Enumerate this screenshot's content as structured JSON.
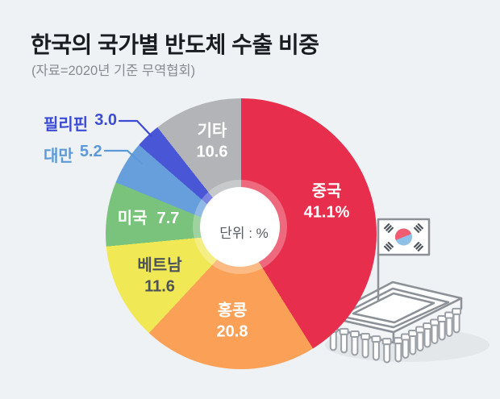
{
  "header": {
    "title": "한국의 국가별 반도체 수출 비중",
    "subtitle": "(자료=2020년 기준 무역협회)"
  },
  "chart_data": {
    "type": "pie",
    "variant": "donut",
    "title": "한국의 국가별 반도체 수출 비중",
    "source_note": "(자료=2020년 기준 무역협회)",
    "unit_label": "단위 : %",
    "start_angle_deg": 0,
    "direction": "clockwise",
    "legend": "none",
    "slices": [
      {
        "label": "중국",
        "value": 41.1,
        "display_value": "41.1%",
        "color": "#e82e4d",
        "label_color": "#ffffff",
        "label_style": "on-slice"
      },
      {
        "label": "홍콩",
        "value": 20.8,
        "display_value": "20.8",
        "color": "#fba057",
        "label_color": "#ffffff",
        "label_style": "on-slice"
      },
      {
        "label": "베트남",
        "value": 11.6,
        "display_value": "11.6",
        "color": "#f0e855",
        "label_color": "#4d5358",
        "label_style": "on-slice"
      },
      {
        "label": "미국",
        "value": 7.7,
        "display_value": "7.7",
        "color": "#79c37c",
        "label_color": "#ffffff",
        "label_style": "on-slice"
      },
      {
        "label": "대만",
        "value": 5.2,
        "display_value": "5.2",
        "color": "#669fdb",
        "label_color": "#5b99d8",
        "label_style": "callout"
      },
      {
        "label": "필리핀",
        "value": 3.0,
        "display_value": "3.0",
        "color": "#4956d6",
        "label_color": "#3c4bd3",
        "label_style": "callout"
      },
      {
        "label": "기타",
        "value": 10.6,
        "display_value": "10.6",
        "color": "#b2b4b7",
        "label_color": "#ffffff",
        "label_style": "on-slice"
      }
    ]
  },
  "illustration": {
    "name": "semiconductor-chip-with-korean-flag",
    "outline_color": "#8b9197",
    "shadow_color": "#e3e7ea",
    "flag_red": "#ef5d70",
    "flag_blue": "#8ec0e8",
    "trigram_color": "#4d545b"
  },
  "colors": {
    "background": "#eff2f4",
    "title_text": "#191c20",
    "subtitle_text": "#878c92",
    "center_text": "#565b61"
  }
}
